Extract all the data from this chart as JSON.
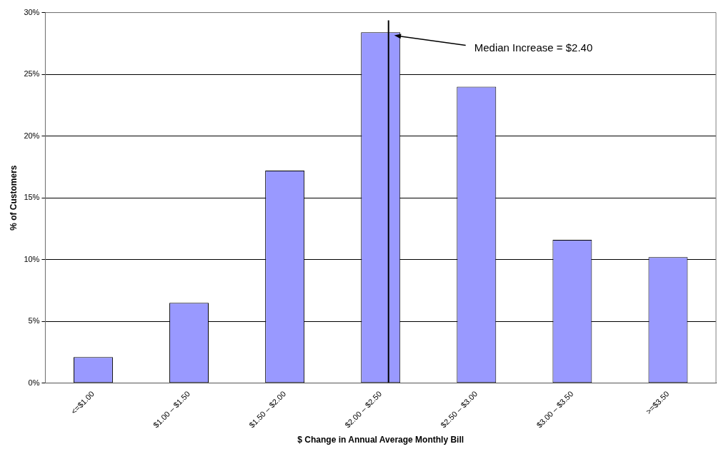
{
  "chart_data": {
    "type": "bar",
    "xlabel": "$ Change in Annual Average Monthly Bill",
    "ylabel": "% of Customers",
    "categories": [
      "<=$1.00",
      "$1.00 – $1.50",
      "$1.50 – $2.00",
      "$2.00 – $2.50",
      "$2.50 – $3.00",
      "$3.00 – $3.50",
      ">=$3.50"
    ],
    "values": [
      2.1,
      6.5,
      17.2,
      28.4,
      24.0,
      11.6,
      10.2
    ],
    "color": "#9999ff",
    "ylim": [
      0,
      30
    ],
    "yticks": [
      {
        "value": 0,
        "label": "0%"
      },
      {
        "value": 5,
        "label": "5%"
      },
      {
        "value": 10,
        "label": "10%"
      },
      {
        "value": 15,
        "label": "15%"
      },
      {
        "value": 20,
        "label": "20%"
      },
      {
        "value": 25,
        "label": "25%"
      },
      {
        "value": 30,
        "label": "30%"
      }
    ],
    "grid": "y",
    "legend": false,
    "ref_lines": [
      {
        "axis": "x",
        "value": "$2.00 – $2.50",
        "label": "Median Increase = $2.40"
      }
    ]
  }
}
